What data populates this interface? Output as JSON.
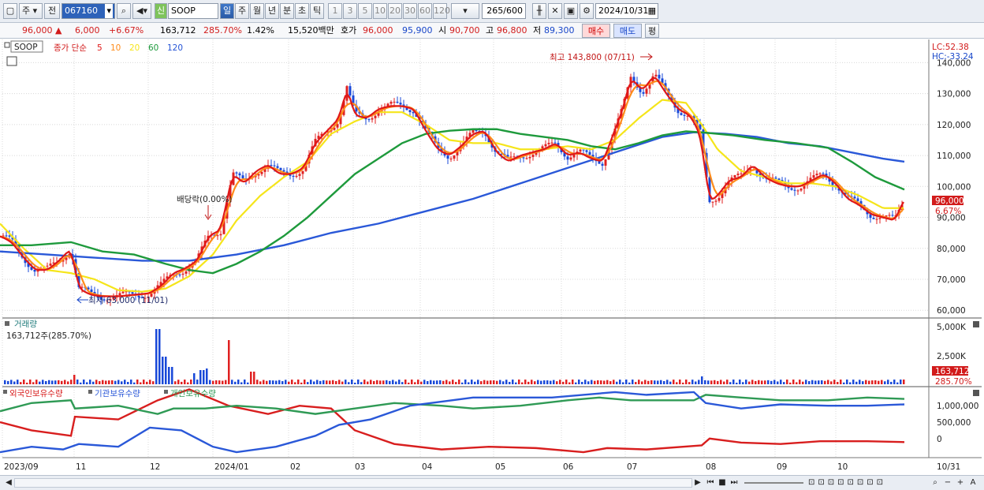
{
  "toolbar": {
    "market": "주",
    "prev": "전",
    "code": "067160",
    "new_badge": "신",
    "stock_name": "SOOP",
    "periods": [
      "일",
      "주",
      "월",
      "년",
      "분",
      "초",
      "틱"
    ],
    "active_period": "일",
    "minutes": [
      "1",
      "3",
      "5",
      "10",
      "20",
      "30",
      "60",
      "120"
    ],
    "count": "265",
    "count_total": "/600",
    "date": "2024/10/31"
  },
  "quote": {
    "price": "96,000",
    "change": "6,000",
    "change_pct": "+6.67%",
    "volume": "163,712",
    "volume_pct": "285.70%",
    "turnover_pct": "1.42%",
    "amount": "15,520백만",
    "hoga_label": "호가",
    "ask": "96,000",
    "bid": "95,900",
    "open_label": "시",
    "open": "90,700",
    "high_label": "고",
    "high": "96,800",
    "low_label": "저",
    "low": "89,300",
    "buy_btn": "매수",
    "sell_btn": "매도",
    "eval_btn": "평"
  },
  "price_panel": {
    "legend_name": "SOOP",
    "legend_type": "종가 단순",
    "ma_labels": [
      "5",
      "10",
      "20",
      "60",
      "120"
    ],
    "ma_colors": [
      "#e01818",
      "#ff8c1a",
      "#f5e51a",
      "#1e9a3c",
      "#2554d6"
    ],
    "lc": "LC:52.38",
    "hc": "HC:-33.24",
    "y_ticks": [
      "140,000",
      "130,000",
      "120,000",
      "110,000",
      "100,000",
      "90,000",
      "80,000",
      "70,000",
      "60,000"
    ],
    "high_annot": "최고 143,800 (07/11)",
    "low_annot": "최저 63,000 (11/01)",
    "div_annot": "배당락(0.00%)",
    "price_tag": "96,000",
    "pct_tag": "6.67%"
  },
  "volume_panel": {
    "title": "거래량",
    "value": "163,712주(285.70%)",
    "y_ticks": [
      "5,000K",
      "2,500K"
    ],
    "tag_value": "163,712",
    "tag_pct": "285.70%"
  },
  "holder_panel": {
    "labels": [
      "외국인보유수량",
      "기관보유수량",
      "개인보유수량"
    ],
    "y_ticks": [
      "1,000,000",
      "500,000",
      "0"
    ]
  },
  "x_axis": [
    "2023/09",
    "11",
    "12",
    "2024/01",
    "02",
    "03",
    "04",
    "05",
    "06",
    "07",
    "08",
    "09",
    "10",
    "10/31"
  ],
  "chart_data": {
    "type": "line",
    "ylim": [
      57500,
      147500
    ],
    "close_path": [
      [
        0,
        84000
      ],
      [
        15,
        82000
      ],
      [
        30,
        77000
      ],
      [
        45,
        73000
      ],
      [
        60,
        73000
      ],
      [
        75,
        76000
      ],
      [
        90,
        80000
      ],
      [
        100,
        67000
      ],
      [
        115,
        65000
      ],
      [
        130,
        64500
      ],
      [
        150,
        64500
      ],
      [
        170,
        65000
      ],
      [
        190,
        65500
      ],
      [
        205,
        68000
      ],
      [
        220,
        72000
      ],
      [
        235,
        73500
      ],
      [
        250,
        76000
      ],
      [
        265,
        84000
      ],
      [
        280,
        86000
      ],
      [
        295,
        104000
      ],
      [
        310,
        101000
      ],
      [
        325,
        105000
      ],
      [
        340,
        107000
      ],
      [
        355,
        104000
      ],
      [
        370,
        104000
      ],
      [
        385,
        106000
      ],
      [
        400,
        114000
      ],
      [
        415,
        118000
      ],
      [
        430,
        122000
      ],
      [
        440,
        132000
      ],
      [
        450,
        123000
      ],
      [
        465,
        122000
      ],
      [
        480,
        125000
      ],
      [
        495,
        126000
      ],
      [
        510,
        126000
      ],
      [
        525,
        125000
      ],
      [
        540,
        118000
      ],
      [
        555,
        112000
      ],
      [
        570,
        110000
      ],
      [
        585,
        113000
      ],
      [
        600,
        117000
      ],
      [
        615,
        118000
      ],
      [
        630,
        111000
      ],
      [
        645,
        108000
      ],
      [
        660,
        110000
      ],
      [
        675,
        111000
      ],
      [
        690,
        112000
      ],
      [
        705,
        114000
      ],
      [
        720,
        110000
      ],
      [
        735,
        111000
      ],
      [
        750,
        109000
      ],
      [
        765,
        108000
      ],
      [
        775,
        115000
      ],
      [
        790,
        125000
      ],
      [
        800,
        135000
      ],
      [
        815,
        131000
      ],
      [
        830,
        136000
      ],
      [
        845,
        130000
      ],
      [
        860,
        125000
      ],
      [
        875,
        123000
      ],
      [
        888,
        117000
      ],
      [
        900,
        95000
      ],
      [
        910,
        97000
      ],
      [
        925,
        102000
      ],
      [
        940,
        103000
      ],
      [
        955,
        107000
      ],
      [
        970,
        103000
      ],
      [
        985,
        101000
      ],
      [
        1000,
        100000
      ],
      [
        1015,
        100000
      ],
      [
        1030,
        102000
      ],
      [
        1045,
        104000
      ],
      [
        1060,
        101000
      ],
      [
        1075,
        96000
      ],
      [
        1090,
        94000
      ],
      [
        1105,
        91000
      ],
      [
        1120,
        90000
      ],
      [
        1135,
        89000
      ],
      [
        1147,
        96000
      ]
    ],
    "ma20_path": [
      [
        0,
        88000
      ],
      [
        30,
        80000
      ],
      [
        60,
        73000
      ],
      [
        90,
        72000
      ],
      [
        120,
        70000
      ],
      [
        150,
        66500
      ],
      [
        180,
        66000
      ],
      [
        210,
        67000
      ],
      [
        240,
        71000
      ],
      [
        270,
        78000
      ],
      [
        300,
        89000
      ],
      [
        330,
        97000
      ],
      [
        360,
        103000
      ],
      [
        390,
        108000
      ],
      [
        420,
        117000
      ],
      [
        450,
        121000
      ],
      [
        480,
        124000
      ],
      [
        510,
        124000
      ],
      [
        540,
        120000
      ],
      [
        570,
        115000
      ],
      [
        600,
        114000
      ],
      [
        630,
        114000
      ],
      [
        660,
        112000
      ],
      [
        690,
        112000
      ],
      [
        720,
        113000
      ],
      [
        750,
        112000
      ],
      [
        780,
        115000
      ],
      [
        810,
        122000
      ],
      [
        840,
        128000
      ],
      [
        870,
        127000
      ],
      [
        890,
        120000
      ],
      [
        910,
        112000
      ],
      [
        940,
        105000
      ],
      [
        970,
        103000
      ],
      [
        1000,
        101000
      ],
      [
        1030,
        101000
      ],
      [
        1060,
        100000
      ],
      [
        1090,
        97000
      ],
      [
        1120,
        93000
      ],
      [
        1147,
        93000
      ]
    ],
    "ma60_path": [
      [
        0,
        81000
      ],
      [
        40,
        81000
      ],
      [
        90,
        82000
      ],
      [
        130,
        79000
      ],
      [
        170,
        78000
      ],
      [
        210,
        75000
      ],
      [
        240,
        73000
      ],
      [
        270,
        72000
      ],
      [
        300,
        75000
      ],
      [
        330,
        79000
      ],
      [
        360,
        84000
      ],
      [
        390,
        90000
      ],
      [
        420,
        97000
      ],
      [
        450,
        104000
      ],
      [
        480,
        109000
      ],
      [
        510,
        114000
      ],
      [
        540,
        117000
      ],
      [
        570,
        118000
      ],
      [
        600,
        118500
      ],
      [
        630,
        118500
      ],
      [
        660,
        117000
      ],
      [
        690,
        116000
      ],
      [
        720,
        115000
      ],
      [
        750,
        113000
      ],
      [
        780,
        112000
      ],
      [
        810,
        114000
      ],
      [
        840,
        116500
      ],
      [
        870,
        117800
      ],
      [
        890,
        117500
      ],
      [
        930,
        116500
      ],
      [
        970,
        115000
      ],
      [
        1010,
        114000
      ],
      [
        1050,
        112500
      ],
      [
        1080,
        108000
      ],
      [
        1110,
        103000
      ],
      [
        1147,
        99000
      ]
    ],
    "ma120_path": [
      [
        0,
        79000
      ],
      [
        60,
        78000
      ],
      [
        120,
        77000
      ],
      [
        180,
        76000
      ],
      [
        240,
        76000
      ],
      [
        300,
        78000
      ],
      [
        360,
        81000
      ],
      [
        420,
        85000
      ],
      [
        480,
        88000
      ],
      [
        540,
        92000
      ],
      [
        600,
        96000
      ],
      [
        660,
        101000
      ],
      [
        720,
        106000
      ],
      [
        780,
        111000
      ],
      [
        840,
        116000
      ],
      [
        880,
        117500
      ],
      [
        920,
        117000
      ],
      [
        960,
        116000
      ],
      [
        1000,
        114000
      ],
      [
        1040,
        113000
      ],
      [
        1080,
        111000
      ],
      [
        1120,
        109000
      ],
      [
        1147,
        108000
      ]
    ],
    "foreign_holding": [
      [
        0,
        530
      ],
      [
        40,
        560
      ],
      [
        90,
        580
      ],
      [
        95,
        510
      ],
      [
        150,
        520
      ],
      [
        200,
        450
      ],
      [
        240,
        410
      ],
      [
        290,
        470
      ],
      [
        340,
        500
      ],
      [
        380,
        470
      ],
      [
        420,
        480
      ],
      [
        450,
        560
      ],
      [
        500,
        610
      ],
      [
        560,
        630
      ],
      [
        620,
        620
      ],
      [
        680,
        625
      ],
      [
        740,
        640
      ],
      [
        770,
        625
      ],
      [
        820,
        630
      ],
      [
        890,
        615
      ],
      [
        900,
        590
      ],
      [
        940,
        605
      ],
      [
        990,
        610
      ],
      [
        1040,
        600
      ],
      [
        1100,
        600
      ],
      [
        1147,
        603
      ]
    ],
    "institution_holding": [
      [
        0,
        640
      ],
      [
        40,
        620
      ],
      [
        80,
        630
      ],
      [
        100,
        610
      ],
      [
        150,
        620
      ],
      [
        190,
        550
      ],
      [
        230,
        560
      ],
      [
        270,
        620
      ],
      [
        300,
        640
      ],
      [
        350,
        620
      ],
      [
        400,
        580
      ],
      [
        430,
        540
      ],
      [
        470,
        520
      ],
      [
        520,
        470
      ],
      [
        600,
        440
      ],
      [
        700,
        440
      ],
      [
        780,
        420
      ],
      [
        820,
        430
      ],
      [
        880,
        420
      ],
      [
        895,
        460
      ],
      [
        940,
        480
      ],
      [
        990,
        465
      ],
      [
        1050,
        470
      ],
      [
        1100,
        470
      ],
      [
        1147,
        465
      ]
    ],
    "individual_holding": [
      [
        0,
        490
      ],
      [
        40,
        460
      ],
      [
        90,
        450
      ],
      [
        95,
        480
      ],
      [
        150,
        470
      ],
      [
        200,
        500
      ],
      [
        220,
        480
      ],
      [
        260,
        480
      ],
      [
        300,
        470
      ],
      [
        350,
        480
      ],
      [
        400,
        500
      ],
      [
        450,
        480
      ],
      [
        500,
        460
      ],
      [
        560,
        470
      ],
      [
        600,
        480
      ],
      [
        660,
        470
      ],
      [
        720,
        450
      ],
      [
        760,
        440
      ],
      [
        800,
        450
      ],
      [
        880,
        450
      ],
      [
        895,
        430
      ],
      [
        940,
        440
      ],
      [
        990,
        450
      ],
      [
        1050,
        450
      ],
      [
        1100,
        440
      ],
      [
        1147,
        445
      ]
    ]
  }
}
